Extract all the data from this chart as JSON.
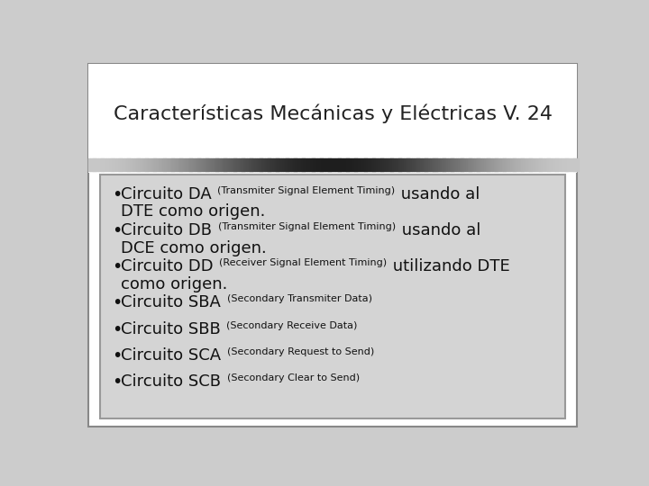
{
  "title": "Características Mecánicas y Eléctricas V. 24",
  "title_fontsize": 16,
  "title_color": "#222222",
  "bg_color": "#cccccc",
  "box_bg": "#d0d0d0",
  "box_border": "#aaaaaa",
  "bullet_items": [
    {
      "main_prefix": "Circuito DA ",
      "small_text": "(Transmiter Signal Element Timing)",
      "main_suffix": " usando al",
      "line2": "DTE como origen."
    },
    {
      "main_prefix": "Circuito DB ",
      "small_text": "(Transmiter Signal Element Timing)",
      "main_suffix": " usando al",
      "line2": "DCE como origen."
    },
    {
      "main_prefix": "Circuito DD ",
      "small_text": "(Receiver Signal Element Timing)",
      "main_suffix": " utilizando DTE",
      "line2": "como origen."
    },
    {
      "main_prefix": "Circuito SBA ",
      "small_text": "(Secondary Transmiter Data)",
      "main_suffix": "",
      "line2": ""
    },
    {
      "main_prefix": "Circuito SBB ",
      "small_text": "(Secondary Receive Data)",
      "main_suffix": "",
      "line2": ""
    },
    {
      "main_prefix": "Circuito SCA ",
      "small_text": "(Secondary Request to Send)",
      "main_suffix": "",
      "line2": ""
    },
    {
      "main_prefix": "Circuito SCB ",
      "small_text": "(Secondary Clear to Send)",
      "main_suffix": "",
      "line2": ""
    }
  ],
  "main_fontsize": 13,
  "small_fontsize": 8,
  "bullet_char": "•",
  "text_color": "#111111"
}
